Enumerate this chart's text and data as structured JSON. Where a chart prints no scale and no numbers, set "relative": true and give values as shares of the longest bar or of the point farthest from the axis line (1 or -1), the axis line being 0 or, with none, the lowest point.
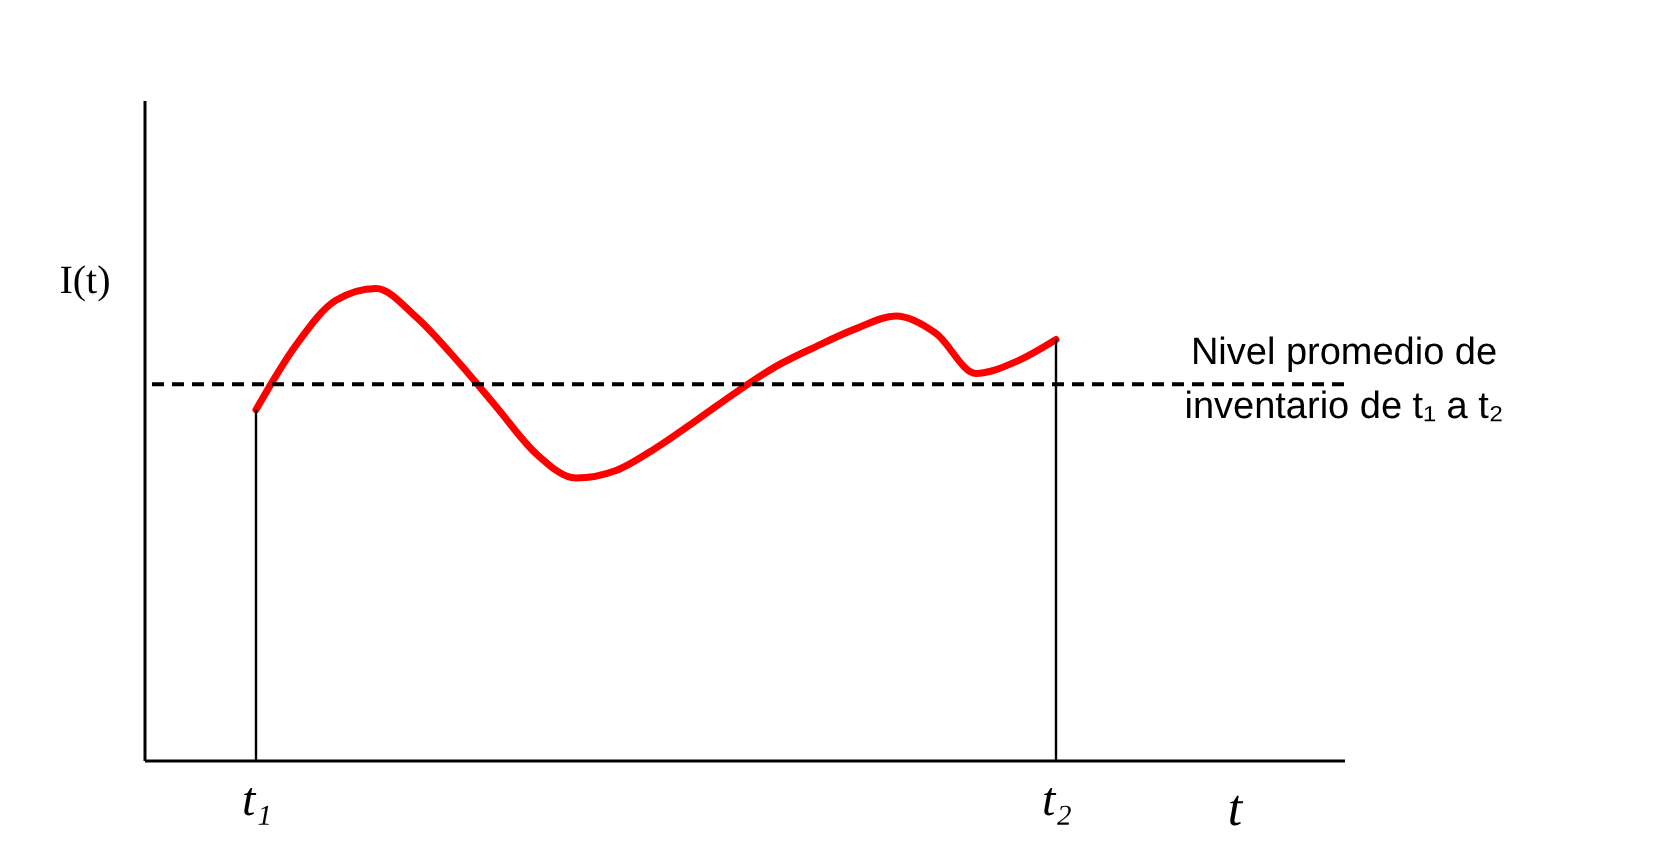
{
  "chart_data": {
    "type": "line",
    "relative": true,
    "xlabel": "t",
    "ylabel": "I(t)",
    "categories": [
      "t₁",
      null,
      null,
      null,
      null,
      null,
      null,
      null,
      null,
      null,
      null,
      null,
      null,
      null,
      null,
      null,
      null,
      null,
      null,
      null,
      "t₂"
    ],
    "series": [
      {
        "color": "#ff0000",
        "values": [
          0.743,
          0.88,
          0.975,
          1,
          0.94,
          0.85,
          0.75,
          0.65,
          0.598,
          0.614,
          0.662,
          0.72,
          0.78,
          0.835,
          0.877,
          0.915,
          0.942,
          0.905,
          0.82,
          0.845,
          0.892
        ]
      }
    ],
    "ref_lines": [
      {
        "axis": "y",
        "value": 0.797,
        "label": "Nivel promedio de inventario de t₁ a t₂",
        "line_style": "dashed",
        "color": "#000000"
      }
    ],
    "grid": "x"
  }
}
